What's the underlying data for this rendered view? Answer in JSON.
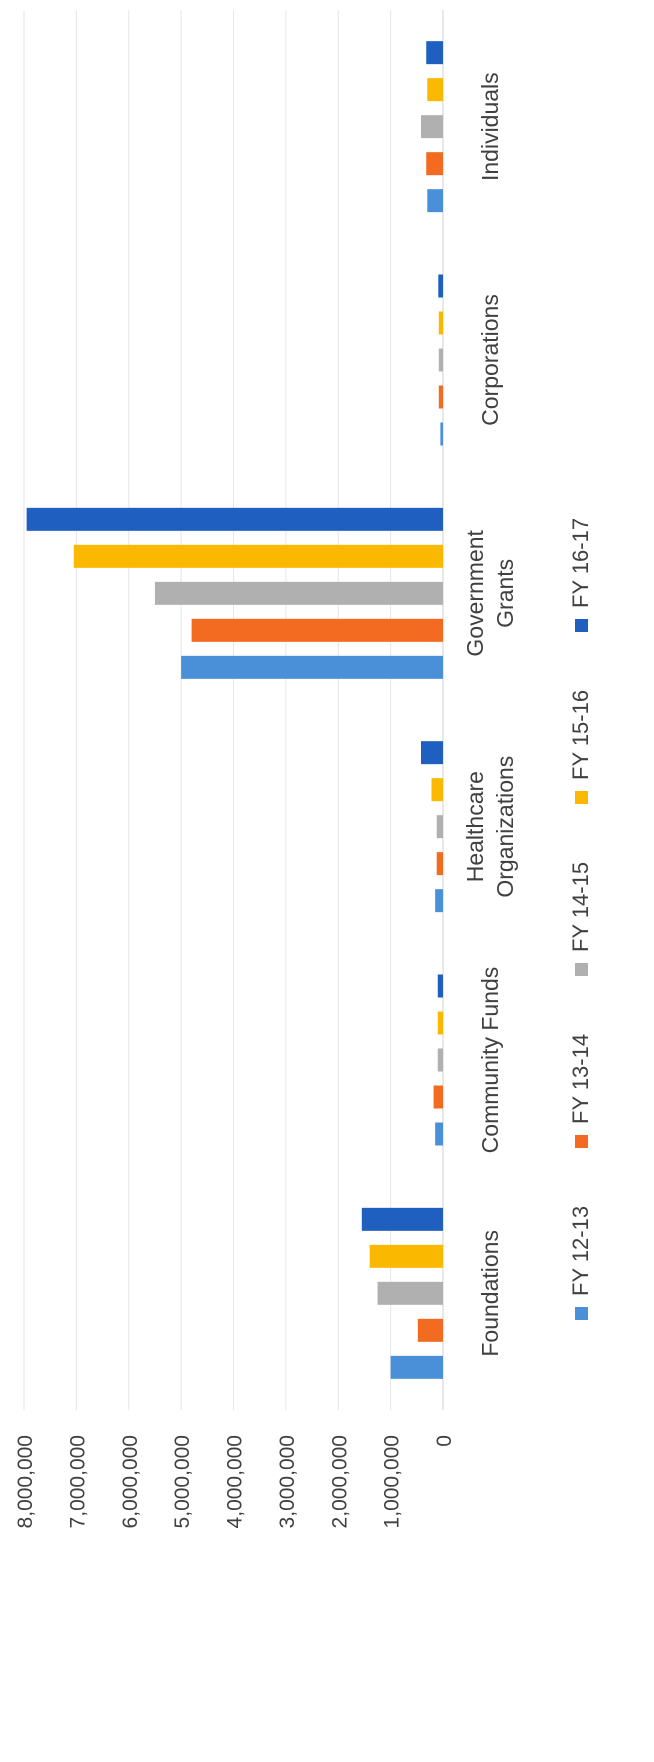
{
  "chart_data": {
    "type": "bar",
    "title": "",
    "xlabel": "",
    "ylabel": "",
    "ylim": [
      0,
      8000000
    ],
    "yticks": [
      "0",
      "1,000,000",
      "2,000,000",
      "3,000,000",
      "4,000,000",
      "5,000,000",
      "6,000,000",
      "7,000,000",
      "8,000,000"
    ],
    "grid": true,
    "legend_position": "bottom",
    "categories": [
      {
        "lines": [
          "Foundations"
        ]
      },
      {
        "lines": [
          "Community Funds"
        ]
      },
      {
        "lines": [
          "Healthcare",
          "Organizations"
        ]
      },
      {
        "lines": [
          "Government",
          "Grants"
        ]
      },
      {
        "lines": [
          "Corporations"
        ]
      },
      {
        "lines": [
          "Individuals"
        ]
      }
    ],
    "series": [
      {
        "name": "FY 12-13",
        "color": "#4a90d9",
        "values": [
          1000000,
          150000,
          150000,
          5000000,
          50000,
          300000
        ]
      },
      {
        "name": "FY 13-14",
        "color": "#f26b21",
        "values": [
          480000,
          180000,
          120000,
          4800000,
          80000,
          320000
        ]
      },
      {
        "name": "FY 14-15",
        "color": "#b0b0b0",
        "values": [
          1250000,
          100000,
          120000,
          5500000,
          80000,
          420000
        ]
      },
      {
        "name": "FY 15-16",
        "color": "#fbb800",
        "values": [
          1400000,
          100000,
          220000,
          7050000,
          80000,
          300000
        ]
      },
      {
        "name": "FY 16-17",
        "color": "#1f5fbf",
        "values": [
          1550000,
          100000,
          420000,
          7950000,
          90000,
          320000
        ]
      }
    ]
  }
}
